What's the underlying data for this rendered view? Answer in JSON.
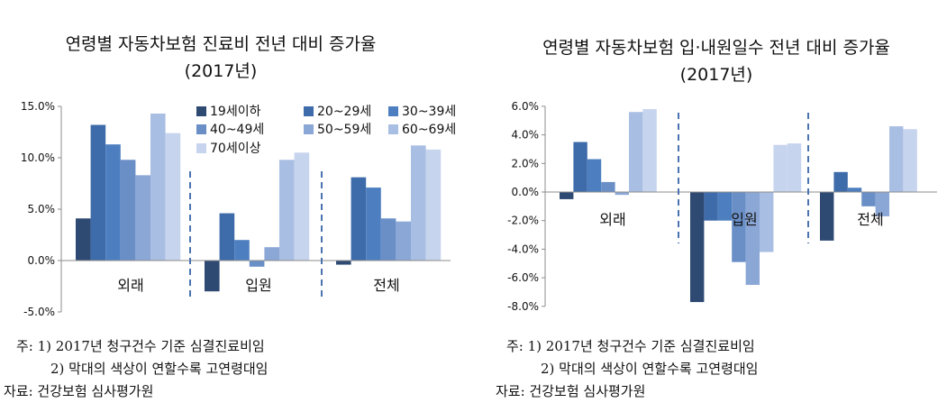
{
  "colors": {
    "series": [
      "#2E4A73",
      "#3E6BA9",
      "#4D7FC0",
      "#6A8FC7",
      "#8BA7D6",
      "#A9BEE3",
      "#C7D4EE"
    ],
    "divider": "#4A73B0",
    "axis": "#8C8C8C"
  },
  "series_names": [
    "19세이하",
    "20~29세",
    "30~39세",
    "40~49세",
    "50~59세",
    "60~69세",
    "70세이상"
  ],
  "chart_data": [
    {
      "type": "bar",
      "title": "연령별 자동차보험 진료비 전년 대비 증가율",
      "subtitle": "(2017년)",
      "categories": [
        "외래",
        "입원",
        "전체"
      ],
      "ylim": [
        -5.0,
        15.0
      ],
      "yticks": [
        "-5.0%",
        "0.0%",
        "5.0%",
        "10.0%",
        "15.0%"
      ],
      "tick_values": [
        -5,
        0,
        5,
        10,
        15
      ],
      "legend": "top-right",
      "grid": false,
      "series": [
        {
          "name": "19세이하",
          "values": [
            4.1,
            -3.0,
            -0.4
          ]
        },
        {
          "name": "20~29세",
          "values": [
            13.2,
            4.6,
            8.1
          ]
        },
        {
          "name": "30~39세",
          "values": [
            11.3,
            2.0,
            7.1
          ]
        },
        {
          "name": "40~49세",
          "values": [
            9.8,
            -0.6,
            4.1
          ]
        },
        {
          "name": "50~59세",
          "values": [
            8.3,
            1.3,
            3.8
          ]
        },
        {
          "name": "60~69세",
          "values": [
            14.3,
            9.8,
            11.2
          ]
        },
        {
          "name": "70세이상",
          "values": [
            12.4,
            10.5,
            10.8
          ]
        }
      ]
    },
    {
      "type": "bar",
      "title": "연령별 자동차보험 입·내원일수 전년 대비 증가율",
      "subtitle": "(2017년)",
      "categories": [
        "외래",
        "입원",
        "전체"
      ],
      "ylim": [
        -8.0,
        6.0
      ],
      "yticks": [
        "-8.0%",
        "-6.0%",
        "-4.0%",
        "-2.0%",
        "0.0%",
        "2.0%",
        "4.0%",
        "6.0%"
      ],
      "tick_values": [
        -8,
        -6,
        -4,
        -2,
        0,
        2,
        4,
        6
      ],
      "grid": false,
      "series": [
        {
          "name": "19세이하",
          "values": [
            -0.5,
            -7.7,
            -3.4
          ]
        },
        {
          "name": "20~29세",
          "values": [
            3.5,
            -2.0,
            1.4
          ]
        },
        {
          "name": "30~39세",
          "values": [
            2.3,
            -2.0,
            0.3
          ]
        },
        {
          "name": "40~49세",
          "values": [
            0.7,
            -4.9,
            -1.0
          ]
        },
        {
          "name": "50~59세",
          "values": [
            -0.2,
            -6.5,
            -1.7
          ]
        },
        {
          "name": "60~69세",
          "values": [
            5.6,
            -4.2,
            4.6
          ]
        },
        {
          "name": "70세이상",
          "values": [
            5.8,
            3.3,
            4.4
          ]
        }
      ],
      "extra_bar": {
        "category": "입원",
        "value": 3.4
      }
    }
  ],
  "notes": {
    "note1": "주: 1) 2017년 청구건수 기준 심결진료비임",
    "note2": "2) 막대의 색상이 연할수록 고연령대임",
    "source": "자료: 건강보험 심사평가원"
  }
}
